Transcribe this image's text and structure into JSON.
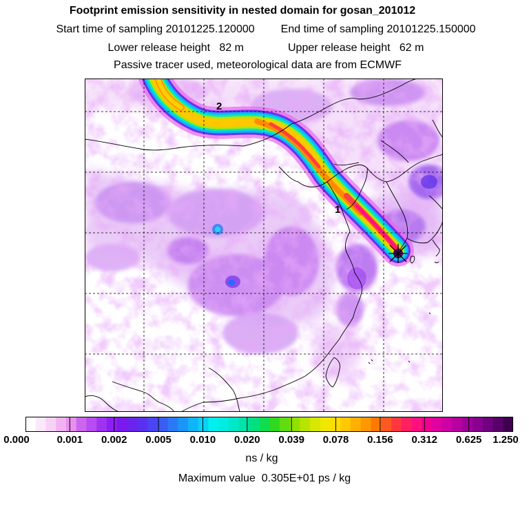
{
  "header": {
    "title": "Footprint emission sensitivity in nested domain for gosan_201012",
    "start_label": "Start time of sampling",
    "start_value": "20101225.120000",
    "end_label": "End time of sampling",
    "end_value": "20101225.150000",
    "lower_label": "Lower release height",
    "lower_value": "82 m",
    "upper_label": "Upper release height",
    "upper_value": "62 m",
    "note": "Passive tracer used, meteorological data are from ECMWF"
  },
  "map": {
    "trajectory_labels": [
      "2",
      "1"
    ],
    "release_marker": "gosan-release-point"
  },
  "colorbar": {
    "ticks": [
      "0.000",
      "0.001",
      "0.002",
      "0.005",
      "0.010",
      "0.020",
      "0.039",
      "0.078",
      "0.156",
      "0.312",
      "0.625",
      "1.250"
    ],
    "colors": [
      "#ffffff",
      "#fbe8fb",
      "#f6d2f6",
      "#f0b2f0",
      "#e890ee",
      "#cc66ee",
      "#b84cf0",
      "#a033f2",
      "#8c1ff2",
      "#7a1aef",
      "#6a24ee",
      "#5a30f0",
      "#4a44f2",
      "#3a5cf4",
      "#2a7af6",
      "#1a96f8",
      "#10b4f8",
      "#08d2f6",
      "#00f0f0",
      "#00ece0",
      "#00e8c8",
      "#00e4a8",
      "#00e080",
      "#10dc50",
      "#30d820",
      "#60dc10",
      "#90e000",
      "#b8e400",
      "#d8e800",
      "#f0e800",
      "#ffdc00",
      "#ffc800",
      "#ffb000",
      "#ff9800",
      "#ff7800",
      "#ff5820",
      "#ff3840",
      "#ff2060",
      "#ff1080",
      "#f00090",
      "#e000a0",
      "#cc00a4",
      "#b800a0",
      "#a0009a",
      "#880090",
      "#700080",
      "#58006a",
      "#400050"
    ],
    "unit": "ns / kg",
    "max_label": "Maximum value",
    "max_value": "0.305E+01 ps / kg"
  }
}
